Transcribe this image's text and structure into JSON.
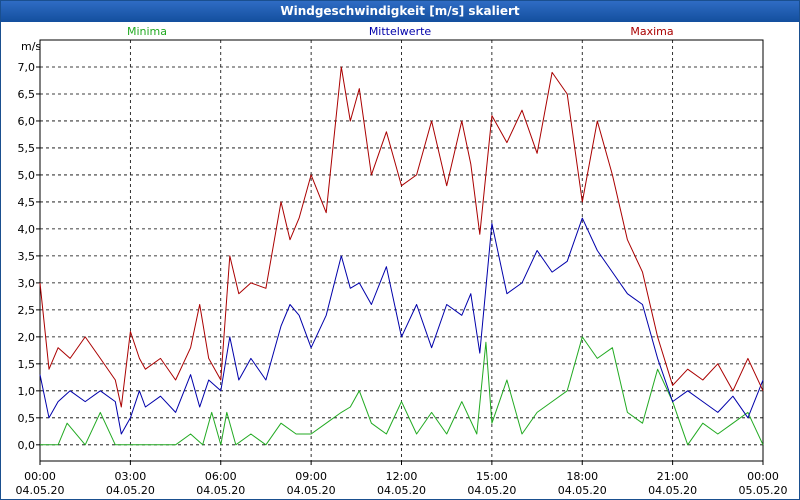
{
  "window": {
    "title": "Windgeschwindigkeit [m/s] skaliert"
  },
  "chart_data": {
    "type": "line",
    "title": "Windgeschwindigkeit [m/s] skaliert",
    "ylabel": "m/s",
    "ylim": [
      -0.3,
      7.5
    ],
    "y_ticks": [
      0,
      0.5,
      1,
      1.5,
      2,
      2.5,
      3,
      3.5,
      4,
      4.5,
      5,
      5.5,
      6,
      6.5,
      7
    ],
    "y_tick_labels": [
      "0,0",
      "0,5",
      "1,0",
      "1,5",
      "2,0",
      "2,5",
      "3,0",
      "3,5",
      "4,0",
      "4,5",
      "5,0",
      "5,5",
      "6,0",
      "6,5",
      "7,0"
    ],
    "x_range_hours": [
      0,
      24
    ],
    "x_ticks": [
      {
        "hour": 0,
        "time": "00:00",
        "date": "04.05.20"
      },
      {
        "hour": 3,
        "time": "03:00",
        "date": "04.05.20"
      },
      {
        "hour": 6,
        "time": "06:00",
        "date": "04.05.20"
      },
      {
        "hour": 9,
        "time": "09:00",
        "date": "04.05.20"
      },
      {
        "hour": 12,
        "time": "12:00",
        "date": "04.05.20"
      },
      {
        "hour": 15,
        "time": "15:00",
        "date": "04.05.20"
      },
      {
        "hour": 18,
        "time": "18:00",
        "date": "04.05.20"
      },
      {
        "hour": 21,
        "time": "21:00",
        "date": "04.05.20"
      },
      {
        "hour": 24,
        "time": "00:00",
        "date": "05.05.20"
      }
    ],
    "grid": true,
    "legend": {
      "position": "top",
      "entries": [
        "Minima",
        "Mittelwerte",
        "Maxima"
      ]
    },
    "series": [
      {
        "name": "Minima",
        "color": "#22aa22",
        "x": [
          0,
          0.6,
          0.9,
          1.5,
          2,
          2.5,
          3,
          3.5,
          4,
          4.5,
          5,
          5.4,
          5.7,
          6,
          6.2,
          6.5,
          7,
          7.5,
          8,
          8.5,
          9,
          9.5,
          10,
          10.3,
          10.6,
          11,
          11.5,
          12,
          12.5,
          13,
          13.5,
          14,
          14.5,
          14.8,
          15,
          15.5,
          16,
          16.5,
          17,
          17.5,
          18,
          18.5,
          19,
          19.5,
          20,
          20.5,
          21,
          21.5,
          22,
          22.5,
          23,
          23.5,
          24
        ],
        "values": [
          0,
          0,
          0.4,
          0,
          0.6,
          0,
          0,
          0,
          0,
          0,
          0.2,
          0,
          0.6,
          0,
          0.6,
          0,
          0.2,
          0,
          0.4,
          0.2,
          0.2,
          0.4,
          0.6,
          0.7,
          1.0,
          0.4,
          0.2,
          0.8,
          0.2,
          0.6,
          0.2,
          0.8,
          0.2,
          1.9,
          0.4,
          1.2,
          0.2,
          0.6,
          0.8,
          1.0,
          2.0,
          1.6,
          1.8,
          0.6,
          0.4,
          1.4,
          0.8,
          0,
          0.4,
          0.2,
          0.4,
          0.6,
          0
        ]
      },
      {
        "name": "Mittelwerte",
        "color": "#0000aa",
        "x": [
          0,
          0.3,
          0.6,
          1,
          1.5,
          2,
          2.5,
          2.7,
          3,
          3.3,
          3.5,
          4,
          4.5,
          5,
          5.3,
          5.6,
          6,
          6.3,
          6.6,
          7,
          7.5,
          8,
          8.3,
          8.6,
          9,
          9.5,
          10,
          10.3,
          10.6,
          11,
          11.5,
          12,
          12.5,
          13,
          13.5,
          14,
          14.3,
          14.6,
          15,
          15.5,
          16,
          16.5,
          17,
          17.5,
          18,
          18.5,
          19,
          19.5,
          20,
          20.5,
          21,
          21.5,
          22,
          22.5,
          23,
          23.5,
          24
        ],
        "values": [
          1.3,
          0.5,
          0.8,
          1.0,
          0.8,
          1.0,
          0.8,
          0.2,
          0.5,
          1.0,
          0.7,
          0.9,
          0.6,
          1.3,
          0.7,
          1.2,
          1.0,
          2.0,
          1.2,
          1.6,
          1.2,
          2.2,
          2.6,
          2.4,
          1.8,
          2.4,
          3.5,
          2.9,
          3.0,
          2.6,
          3.3,
          2.0,
          2.6,
          1.8,
          2.6,
          2.4,
          2.8,
          1.7,
          4.1,
          2.8,
          3.0,
          3.6,
          3.2,
          3.4,
          4.2,
          3.6,
          3.2,
          2.8,
          2.6,
          1.6,
          0.8,
          1.0,
          0.8,
          0.6,
          0.9,
          0.5,
          1.2
        ]
      },
      {
        "name": "Maxima",
        "color": "#aa0000",
        "x": [
          0,
          0.3,
          0.6,
          1,
          1.5,
          2,
          2.5,
          2.7,
          3,
          3.3,
          3.5,
          4,
          4.5,
          5,
          5.3,
          5.6,
          6,
          6.3,
          6.6,
          7,
          7.5,
          8,
          8.3,
          8.6,
          9,
          9.5,
          10,
          10.3,
          10.6,
          11,
          11.5,
          12,
          12.5,
          13,
          13.5,
          14,
          14.3,
          14.6,
          15,
          15.5,
          16,
          16.5,
          17,
          17.5,
          18,
          18.5,
          19,
          19.5,
          20,
          20.5,
          21,
          21.5,
          22,
          22.5,
          23,
          23.5,
          24
        ],
        "values": [
          3.0,
          1.4,
          1.8,
          1.6,
          2.0,
          1.6,
          1.2,
          0.7,
          2.1,
          1.6,
          1.4,
          1.6,
          1.2,
          1.8,
          2.6,
          1.6,
          1.2,
          3.5,
          2.8,
          3.0,
          2.9,
          4.5,
          3.8,
          4.2,
          5.0,
          4.3,
          7.0,
          6.0,
          6.6,
          5.0,
          5.8,
          4.8,
          5.0,
          6.0,
          4.8,
          6.0,
          5.2,
          3.9,
          6.1,
          5.6,
          6.2,
          5.4,
          6.9,
          6.5,
          4.5,
          6.0,
          5.0,
          3.8,
          3.2,
          2.0,
          1.1,
          1.4,
          1.2,
          1.5,
          1.0,
          1.6,
          1.0
        ]
      }
    ]
  }
}
